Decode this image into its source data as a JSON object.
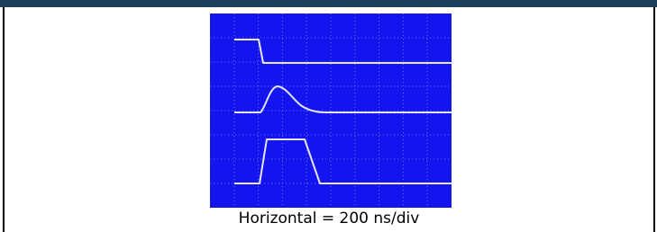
{
  "caption": "Horizontal = 200 ns/div"
}
